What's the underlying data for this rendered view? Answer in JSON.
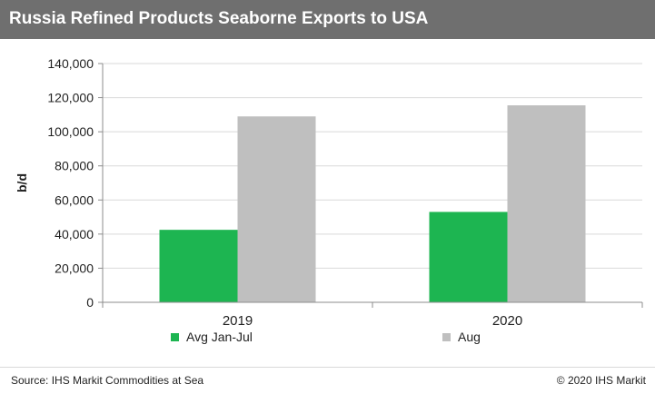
{
  "title": "Russia Refined Products Seaborne Exports to USA",
  "source": "Source: IHS Markit Commodities at Sea",
  "copyright": "© 2020 IHS Markit",
  "colors": {
    "header_bg": "#6f6f6f",
    "series_1": "#1db551",
    "series_2": "#bfbfbf"
  },
  "chart_data": {
    "type": "bar",
    "ylabel": "b/d",
    "xlabel": "",
    "categories": [
      "2019",
      "2020"
    ],
    "series": [
      {
        "name": "Avg Jan-Jul",
        "values": [
          42500,
          53000
        ],
        "color": "#1db551"
      },
      {
        "name": "Aug",
        "values": [
          109000,
          115500
        ],
        "color": "#bfbfbf"
      }
    ],
    "ylim": [
      0,
      140000
    ],
    "yticks": [
      0,
      20000,
      40000,
      60000,
      80000,
      100000,
      120000,
      140000
    ],
    "ytick_labels": [
      "0",
      "20,000",
      "40,000",
      "60,000",
      "80,000",
      "100,000",
      "120,000",
      "140,000"
    ],
    "grid": true,
    "legend_position": "bottom"
  }
}
